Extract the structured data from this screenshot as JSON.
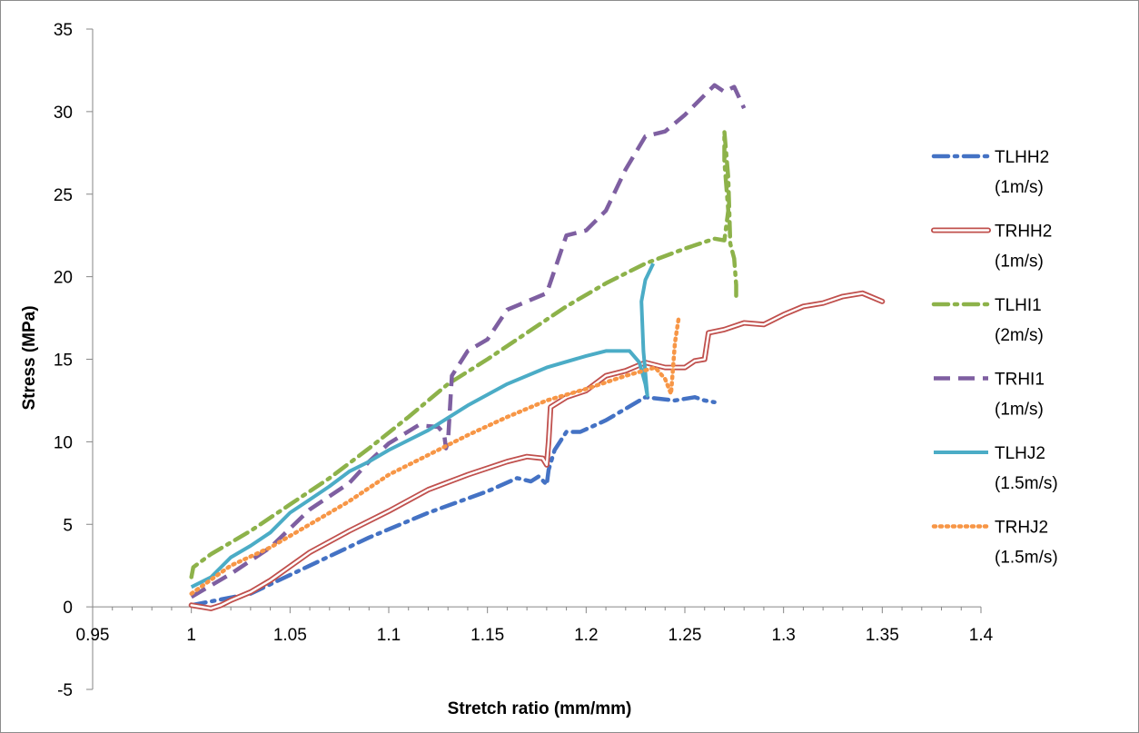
{
  "chart_data": {
    "type": "line",
    "title": "",
    "xlabel": "Stretch ratio (mm/mm)",
    "ylabel": "Stress (MPa)",
    "xlim": [
      0.95,
      1.4
    ],
    "ylim": [
      -5,
      35
    ],
    "x_ticks": [
      "0.95",
      "1",
      "1.05",
      "1.1",
      "1.15",
      "1.2",
      "1.25",
      "1.3",
      "1.35",
      "1.4"
    ],
    "y_ticks": [
      "-5",
      "0",
      "5",
      "10",
      "15",
      "20",
      "25",
      "30",
      "35"
    ],
    "grid": false,
    "legend_position": "right",
    "series": [
      {
        "name_line1": "TLHH2",
        "name_line2": "(1m/s)",
        "color": "#4472C4",
        "style": "dashdot",
        "points": [
          [
            1.0,
            0.1
          ],
          [
            1.03,
            0.8
          ],
          [
            1.06,
            2.5
          ],
          [
            1.09,
            4.2
          ],
          [
            1.12,
            5.7
          ],
          [
            1.15,
            7.0
          ],
          [
            1.165,
            7.8
          ],
          [
            1.172,
            7.6
          ],
          [
            1.176,
            7.9
          ],
          [
            1.18,
            7.4
          ],
          [
            1.181,
            8.3
          ],
          [
            1.184,
            9.5
          ],
          [
            1.19,
            10.6
          ],
          [
            1.197,
            10.6
          ],
          [
            1.21,
            11.3
          ],
          [
            1.22,
            12.0
          ],
          [
            1.23,
            12.7
          ],
          [
            1.245,
            12.5
          ],
          [
            1.255,
            12.7
          ],
          [
            1.26,
            12.5
          ],
          [
            1.265,
            12.4
          ]
        ]
      },
      {
        "name_line1": "TRHH2",
        "name_line2": "(1m/s)",
        "color": "#C0504D",
        "style": "double",
        "points": [
          [
            1.0,
            0.1
          ],
          [
            1.005,
            0.0
          ],
          [
            1.01,
            -0.1
          ],
          [
            1.015,
            0.1
          ],
          [
            1.02,
            0.4
          ],
          [
            1.03,
            0.9
          ],
          [
            1.04,
            1.6
          ],
          [
            1.06,
            3.3
          ],
          [
            1.08,
            4.6
          ],
          [
            1.1,
            5.8
          ],
          [
            1.12,
            7.1
          ],
          [
            1.14,
            8.0
          ],
          [
            1.16,
            8.8
          ],
          [
            1.17,
            9.1
          ],
          [
            1.178,
            9.0
          ],
          [
            1.18,
            8.6
          ],
          [
            1.181,
            10.0
          ],
          [
            1.182,
            12.1
          ],
          [
            1.19,
            12.7
          ],
          [
            1.2,
            13.1
          ],
          [
            1.21,
            14.0
          ],
          [
            1.22,
            14.3
          ],
          [
            1.23,
            14.8
          ],
          [
            1.24,
            14.5
          ],
          [
            1.25,
            14.5
          ],
          [
            1.255,
            14.9
          ],
          [
            1.26,
            15.0
          ],
          [
            1.262,
            16.6
          ],
          [
            1.27,
            16.8
          ],
          [
            1.28,
            17.2
          ],
          [
            1.29,
            17.1
          ],
          [
            1.3,
            17.7
          ],
          [
            1.31,
            18.2
          ],
          [
            1.32,
            18.4
          ],
          [
            1.33,
            18.8
          ],
          [
            1.34,
            19.0
          ],
          [
            1.35,
            18.5
          ]
        ]
      },
      {
        "name_line1": "TLHI1",
        "name_line2": "(2m/s)",
        "color": "#8DB24A",
        "style": "dashdot",
        "points": [
          [
            1.0,
            1.8
          ],
          [
            1.001,
            2.4
          ],
          [
            1.01,
            3.2
          ],
          [
            1.03,
            4.6
          ],
          [
            1.05,
            6.2
          ],
          [
            1.07,
            7.8
          ],
          [
            1.09,
            9.6
          ],
          [
            1.11,
            11.5
          ],
          [
            1.13,
            13.5
          ],
          [
            1.15,
            15.0
          ],
          [
            1.17,
            16.6
          ],
          [
            1.19,
            18.2
          ],
          [
            1.21,
            19.6
          ],
          [
            1.23,
            20.8
          ],
          [
            1.25,
            21.7
          ],
          [
            1.265,
            22.3
          ],
          [
            1.27,
            22.2
          ],
          [
            1.272,
            24.0
          ],
          [
            1.27,
            27.0
          ],
          [
            1.27,
            28.8
          ],
          [
            1.272,
            26.0
          ],
          [
            1.273,
            22.0
          ],
          [
            1.275,
            21.1
          ],
          [
            1.276,
            19.5
          ],
          [
            1.276,
            18.8
          ]
        ]
      },
      {
        "name_line1": "TRHI1",
        "name_line2": "(1m/s)",
        "color": "#7E5FA1",
        "style": "dashed",
        "points": [
          [
            1.0,
            0.6
          ],
          [
            1.02,
            2.0
          ],
          [
            1.04,
            3.6
          ],
          [
            1.06,
            5.9
          ],
          [
            1.08,
            7.5
          ],
          [
            1.09,
            8.8
          ],
          [
            1.1,
            9.9
          ],
          [
            1.115,
            11.0
          ],
          [
            1.125,
            10.9
          ],
          [
            1.128,
            10.5
          ],
          [
            1.129,
            9.6
          ],
          [
            1.13,
            10.0
          ],
          [
            1.132,
            14.0
          ],
          [
            1.14,
            15.5
          ],
          [
            1.15,
            16.2
          ],
          [
            1.16,
            18.0
          ],
          [
            1.17,
            18.5
          ],
          [
            1.18,
            19.0
          ],
          [
            1.19,
            22.5
          ],
          [
            1.2,
            22.8
          ],
          [
            1.21,
            24.0
          ],
          [
            1.22,
            26.5
          ],
          [
            1.23,
            28.5
          ],
          [
            1.24,
            28.8
          ],
          [
            1.25,
            29.8
          ],
          [
            1.26,
            31.0
          ],
          [
            1.265,
            31.6
          ],
          [
            1.27,
            31.2
          ],
          [
            1.275,
            31.5
          ],
          [
            1.28,
            30.2
          ]
        ]
      },
      {
        "name_line1": "TLHJ2",
        "name_line2": "(1.5m/s)",
        "color": "#4BACC6",
        "style": "solid",
        "points": [
          [
            1.0,
            1.2
          ],
          [
            1.01,
            1.8
          ],
          [
            1.02,
            3.0
          ],
          [
            1.03,
            3.7
          ],
          [
            1.04,
            4.5
          ],
          [
            1.05,
            5.7
          ],
          [
            1.06,
            6.5
          ],
          [
            1.07,
            7.3
          ],
          [
            1.08,
            8.2
          ],
          [
            1.09,
            8.8
          ],
          [
            1.1,
            9.5
          ],
          [
            1.12,
            10.7
          ],
          [
            1.14,
            12.2
          ],
          [
            1.16,
            13.5
          ],
          [
            1.18,
            14.5
          ],
          [
            1.2,
            15.2
          ],
          [
            1.21,
            15.5
          ],
          [
            1.222,
            15.5
          ],
          [
            1.227,
            14.8
          ],
          [
            1.23,
            13.5
          ],
          [
            1.231,
            12.8
          ],
          [
            1.229,
            15.5
          ],
          [
            1.228,
            18.5
          ],
          [
            1.23,
            19.8
          ],
          [
            1.234,
            20.8
          ]
        ]
      },
      {
        "name_line1": "TRHJ2",
        "name_line2": "(1.5m/s)",
        "color": "#F79646",
        "style": "dotted",
        "points": [
          [
            1.0,
            0.8
          ],
          [
            1.02,
            2.5
          ],
          [
            1.04,
            3.6
          ],
          [
            1.06,
            5.0
          ],
          [
            1.08,
            6.4
          ],
          [
            1.1,
            8.0
          ],
          [
            1.12,
            9.2
          ],
          [
            1.14,
            10.4
          ],
          [
            1.16,
            11.5
          ],
          [
            1.18,
            12.5
          ],
          [
            1.2,
            13.2
          ],
          [
            1.22,
            14.0
          ],
          [
            1.235,
            14.5
          ],
          [
            1.24,
            13.8
          ],
          [
            1.243,
            12.9
          ],
          [
            1.244,
            14.5
          ],
          [
            1.245,
            16.0
          ],
          [
            1.247,
            17.6
          ]
        ]
      }
    ]
  }
}
